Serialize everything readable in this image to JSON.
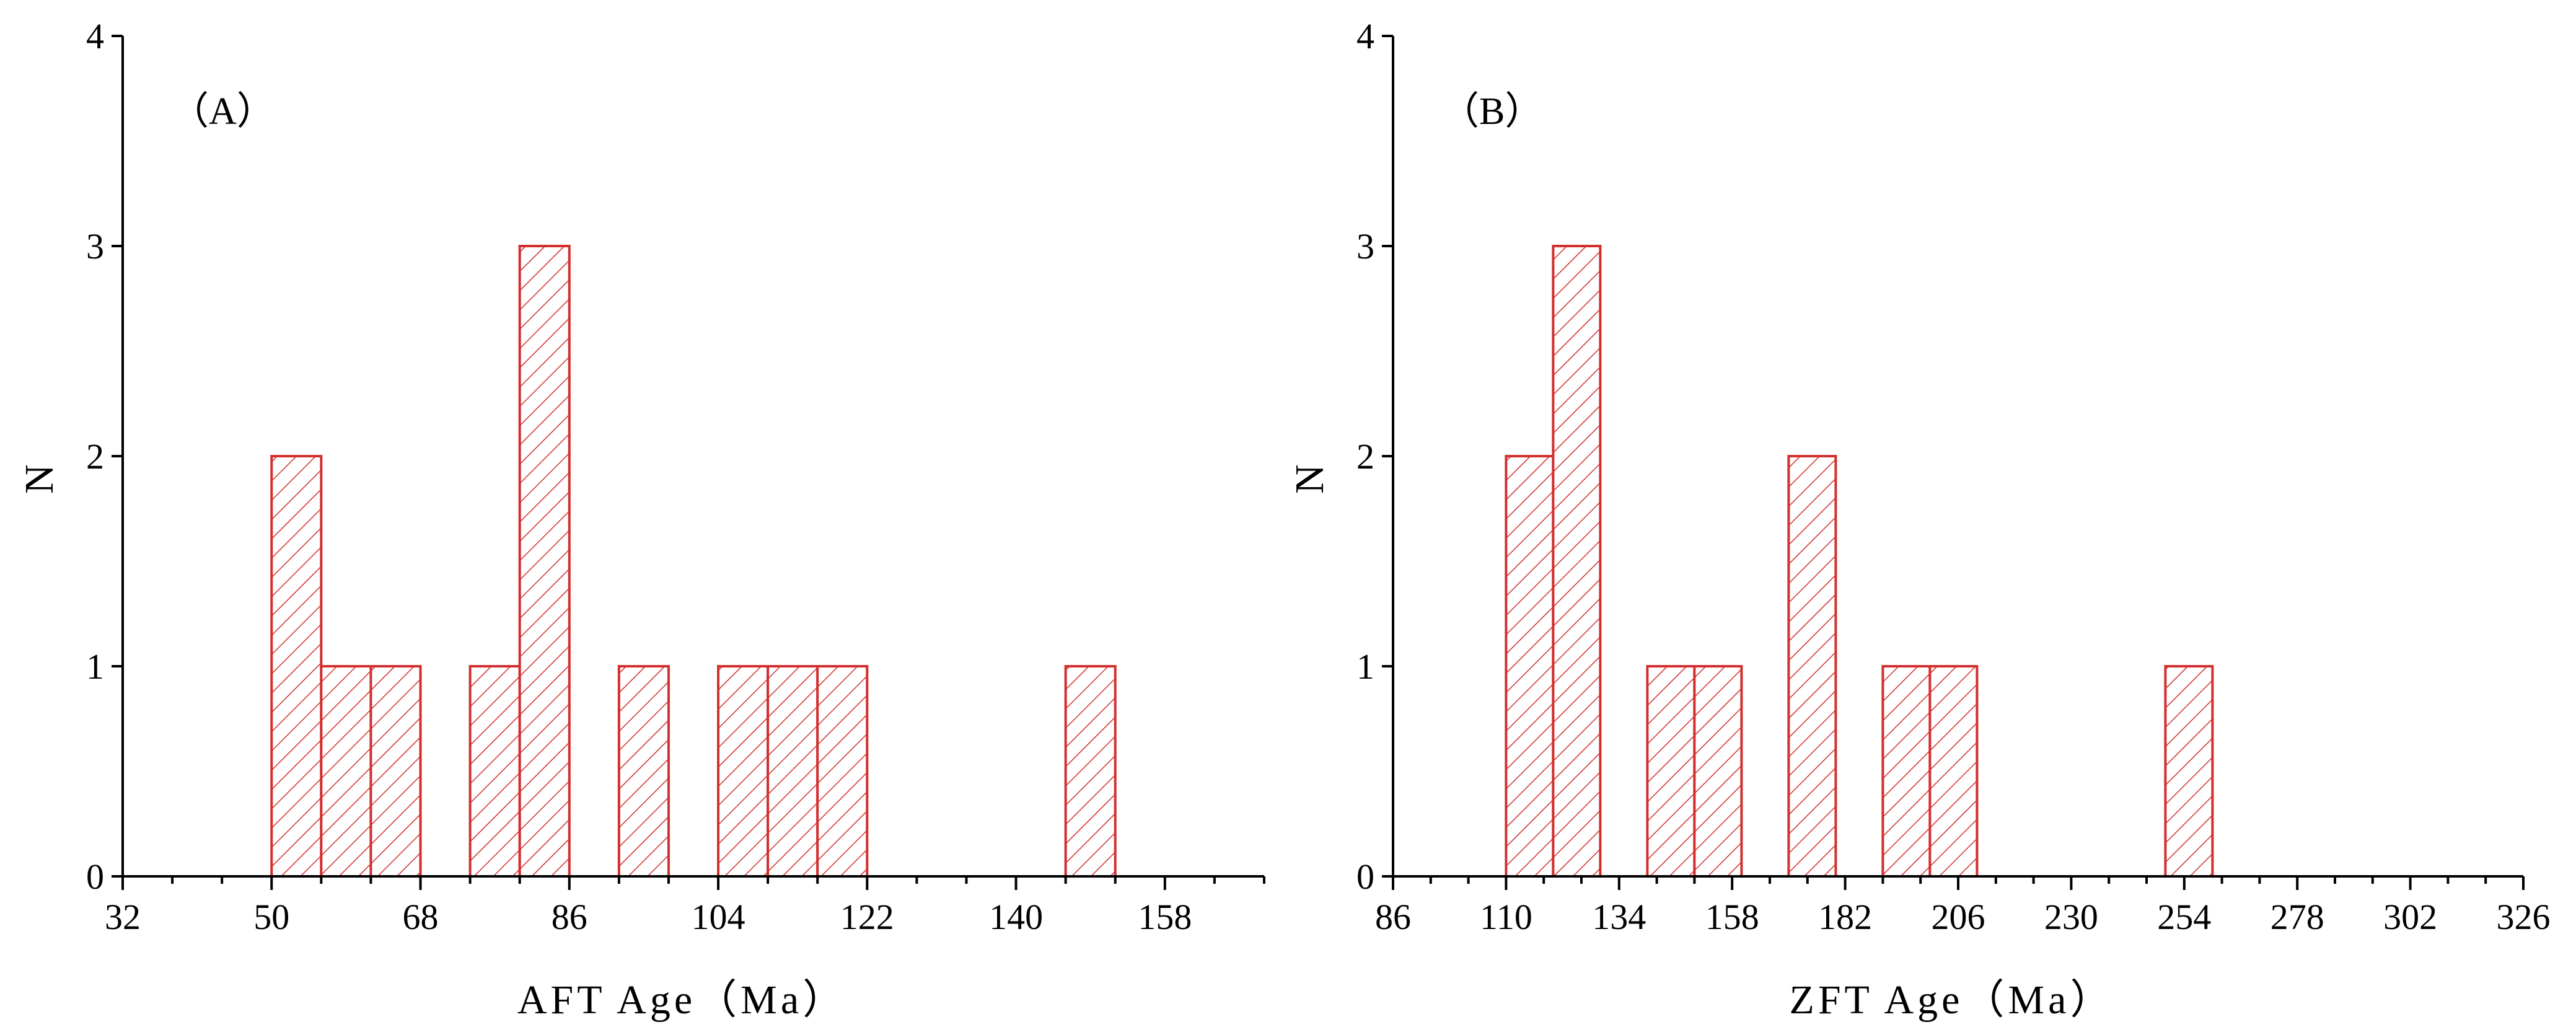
{
  "chart_data": [
    {
      "type": "bar",
      "panel_label": "（A）",
      "xlabel": "AFT Age（Ma）",
      "ylabel": "N",
      "xlim": [
        32,
        170
      ],
      "ylim": [
        0,
        4
      ],
      "xticks": [
        32,
        50,
        68,
        86,
        104,
        122,
        140,
        158
      ],
      "yticks": [
        0,
        1,
        2,
        3,
        4
      ],
      "bin_width": 6,
      "bars": [
        {
          "start": 50,
          "end": 56,
          "value": 2
        },
        {
          "start": 56,
          "end": 62,
          "value": 1
        },
        {
          "start": 62,
          "end": 68,
          "value": 1
        },
        {
          "start": 74,
          "end": 80,
          "value": 1
        },
        {
          "start": 80,
          "end": 86,
          "value": 3
        },
        {
          "start": 92,
          "end": 98,
          "value": 1
        },
        {
          "start": 104,
          "end": 110,
          "value": 1
        },
        {
          "start": 110,
          "end": 116,
          "value": 1
        },
        {
          "start": 116,
          "end": 122,
          "value": 1
        },
        {
          "start": 146,
          "end": 152,
          "value": 1
        }
      ],
      "bar_color": "#d32f2f",
      "fill": "diagonal-hatch",
      "grid": false
    },
    {
      "type": "bar",
      "panel_label": "（B）",
      "xlabel": "ZFT Age（Ma）",
      "ylabel": "N",
      "xlim": [
        86,
        326
      ],
      "ylim": [
        0,
        4
      ],
      "xticks": [
        86,
        110,
        134,
        158,
        182,
        206,
        230,
        254,
        278,
        302,
        326
      ],
      "yticks": [
        0,
        1,
        2,
        3,
        4
      ],
      "bin_width": 10,
      "bars": [
        {
          "start": 110,
          "end": 120,
          "value": 2
        },
        {
          "start": 120,
          "end": 130,
          "value": 3
        },
        {
          "start": 140,
          "end": 150,
          "value": 1
        },
        {
          "start": 150,
          "end": 160,
          "value": 1
        },
        {
          "start": 170,
          "end": 180,
          "value": 2
        },
        {
          "start": 190,
          "end": 200,
          "value": 1
        },
        {
          "start": 200,
          "end": 210,
          "value": 1
        },
        {
          "start": 250,
          "end": 260,
          "value": 1
        }
      ],
      "bar_color": "#d32f2f",
      "fill": "diagonal-hatch",
      "grid": false
    }
  ]
}
